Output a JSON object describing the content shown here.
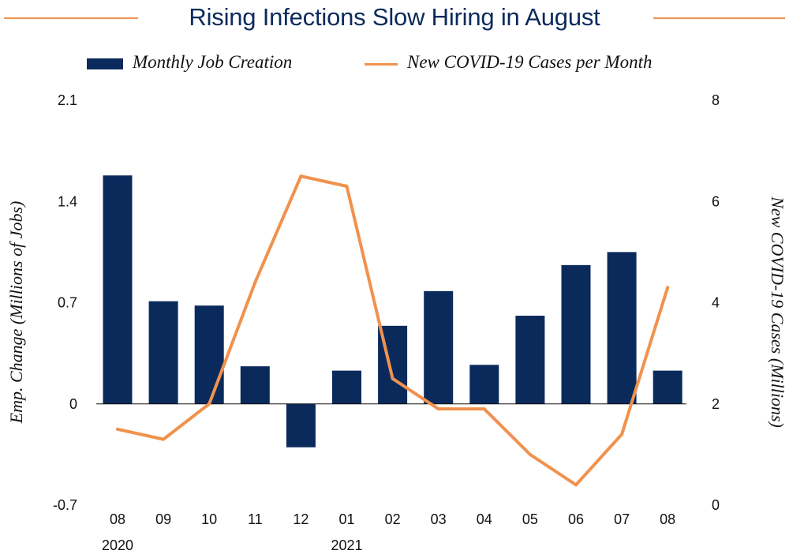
{
  "colors": {
    "bar": "#0B2A5C",
    "line": "#F0924E",
    "title": "#0B2A5C",
    "text": "#111111"
  },
  "title": "Rising Infections Slow Hiring in August",
  "legend": {
    "bar_label": "Monthly Job Creation",
    "line_label": "New COVID-19 Cases per Month"
  },
  "chart_data": {
    "type": "bar+line",
    "title": "Rising Infections Slow Hiring in August",
    "categories": [
      "08",
      "09",
      "10",
      "11",
      "12",
      "01",
      "02",
      "03",
      "04",
      "05",
      "06",
      "07",
      "08"
    ],
    "year_labels": [
      {
        "index": 0,
        "label": "2020"
      },
      {
        "index": 5,
        "label": "2021"
      }
    ],
    "series": [
      {
        "name": "Monthly Job Creation",
        "type": "bar",
        "axis": "left",
        "values": [
          1.58,
          0.71,
          0.68,
          0.26,
          -0.3,
          0.23,
          0.54,
          0.78,
          0.27,
          0.61,
          0.96,
          1.05,
          0.23
        ]
      },
      {
        "name": "New COVID-19 Cases per Month",
        "type": "line",
        "axis": "right",
        "values": [
          1.5,
          1.3,
          2.0,
          4.4,
          6.5,
          6.3,
          2.5,
          1.9,
          1.9,
          1.0,
          0.4,
          1.4,
          4.3
        ]
      }
    ],
    "ylabel_left": "Emp. Change (Millions of Jobs)",
    "ylabel_right": "New COVID-19 Cases (Millions)",
    "y_left": {
      "lim": [
        -0.7,
        2.1
      ],
      "ticks": [
        "2.1",
        "1.4",
        "0.7",
        "0",
        "-0.7"
      ],
      "tick_values": [
        2.1,
        1.4,
        0.7,
        0,
        -0.7
      ]
    },
    "y_right": {
      "lim": [
        0,
        8
      ],
      "ticks": [
        "8",
        "6",
        "4",
        "2",
        "0"
      ],
      "tick_values": [
        8,
        6,
        4,
        2,
        0
      ]
    },
    "grid": false,
    "legend_position": "top"
  }
}
